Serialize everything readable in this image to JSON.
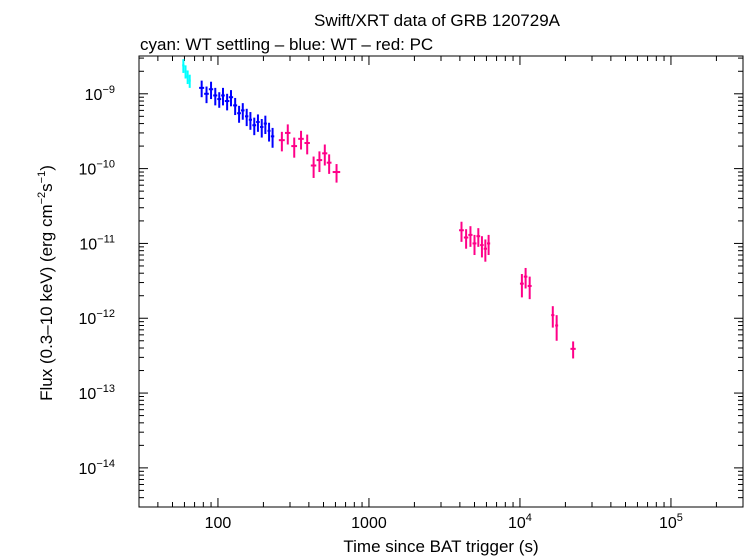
{
  "chart_data": {
    "type": "scatter",
    "title": "Swift/XRT data of GRB 120729A",
    "subtitle": "cyan: WT settling – blue: WT – red: PC",
    "xlabel": "Time since BAT trigger (s)",
    "ylabel_main": "Flux (0.3–10 keV) (erg cm",
    "ylabel_exp1": "−2",
    "ylabel_mid": "s",
    "ylabel_exp2": "−1",
    "ylabel_end": ")",
    "x_scale": "log",
    "y_scale": "log",
    "xlim": [
      30,
      300000
    ],
    "ylim": [
      3e-15,
      3.2e-09
    ],
    "x_ticks": [
      {
        "value": 100,
        "base": "100",
        "exp": ""
      },
      {
        "value": 1000,
        "base": "1000",
        "exp": ""
      },
      {
        "value": 10000,
        "base": "10",
        "exp": "4"
      },
      {
        "value": 100000,
        "base": "10",
        "exp": "5"
      }
    ],
    "y_ticks": [
      {
        "value": 1e-09,
        "base": "10",
        "exp": "−9"
      },
      {
        "value": 1e-10,
        "base": "10",
        "exp": "−10"
      },
      {
        "value": 1e-11,
        "base": "10",
        "exp": "−11"
      },
      {
        "value": 1e-12,
        "base": "10",
        "exp": "−12"
      },
      {
        "value": 1e-13,
        "base": "10",
        "exp": "−13"
      },
      {
        "value": 1e-14,
        "base": "10",
        "exp": "−14"
      }
    ],
    "grid": false,
    "series": [
      {
        "name": "WT settling",
        "color": "#00ffff",
        "points": [
          {
            "x": 59,
            "y": 2.4e-09,
            "xerr": 1,
            "yerr": 5e-10
          },
          {
            "x": 61,
            "y": 2e-09,
            "xerr": 1,
            "yerr": 4e-10
          },
          {
            "x": 63,
            "y": 1.7e-09,
            "xerr": 1,
            "yerr": 3.5e-10
          },
          {
            "x": 65,
            "y": 1.5e-09,
            "xerr": 1,
            "yerr": 3e-10
          }
        ]
      },
      {
        "name": "WT",
        "color": "#0000ff",
        "points": [
          {
            "x": 78,
            "y": 1.2e-09,
            "xerr": 3,
            "yerr": 3e-10
          },
          {
            "x": 84,
            "y": 1e-09,
            "xerr": 3,
            "yerr": 2.5e-10
          },
          {
            "x": 90,
            "y": 1.15e-09,
            "xerr": 3,
            "yerr": 3e-10
          },
          {
            "x": 96,
            "y": 9.5e-10,
            "xerr": 3,
            "yerr": 2.5e-10
          },
          {
            "x": 102,
            "y": 8.5e-10,
            "xerr": 3,
            "yerr": 2e-10
          },
          {
            "x": 108,
            "y": 9.5e-10,
            "xerr": 3,
            "yerr": 2.5e-10
          },
          {
            "x": 115,
            "y": 8e-10,
            "xerr": 4,
            "yerr": 2e-10
          },
          {
            "x": 122,
            "y": 9e-10,
            "xerr": 4,
            "yerr": 2.2e-10
          },
          {
            "x": 130,
            "y": 7e-10,
            "xerr": 4,
            "yerr": 1.8e-10
          },
          {
            "x": 138,
            "y": 5.5e-10,
            "xerr": 4,
            "yerr": 1.4e-10
          },
          {
            "x": 146,
            "y": 6e-10,
            "xerr": 4,
            "yerr": 1.5e-10
          },
          {
            "x": 155,
            "y": 5e-10,
            "xerr": 4,
            "yerr": 1.3e-10
          },
          {
            "x": 164,
            "y": 4.5e-10,
            "xerr": 4,
            "yerr": 1.2e-10
          },
          {
            "x": 174,
            "y": 3.8e-10,
            "xerr": 5,
            "yerr": 1e-10
          },
          {
            "x": 184,
            "y": 4.2e-10,
            "xerr": 5,
            "yerr": 1.1e-10
          },
          {
            "x": 195,
            "y": 3.6e-10,
            "xerr": 5,
            "yerr": 1e-10
          },
          {
            "x": 206,
            "y": 4e-10,
            "xerr": 5,
            "yerr": 1.1e-10
          },
          {
            "x": 218,
            "y": 3.2e-10,
            "xerr": 5,
            "yerr": 9e-11
          },
          {
            "x": 230,
            "y": 2.7e-10,
            "xerr": 6,
            "yerr": 8e-11
          }
        ]
      },
      {
        "name": "PC",
        "color": "#ff0088",
        "points": [
          {
            "x": 265,
            "y": 2.4e-10,
            "xerr": 12,
            "yerr": 7e-11
          },
          {
            "x": 290,
            "y": 3e-10,
            "xerr": 12,
            "yerr": 9e-11
          },
          {
            "x": 320,
            "y": 2e-10,
            "xerr": 14,
            "yerr": 6e-11
          },
          {
            "x": 355,
            "y": 2.5e-10,
            "xerr": 15,
            "yerr": 7e-11
          },
          {
            "x": 390,
            "y": 2.2e-10,
            "xerr": 16,
            "yerr": 6.5e-11
          },
          {
            "x": 430,
            "y": 1.1e-10,
            "xerr": 18,
            "yerr": 3.5e-11
          },
          {
            "x": 470,
            "y": 1.3e-10,
            "xerr": 20,
            "yerr": 4e-11
          },
          {
            "x": 510,
            "y": 1.6e-10,
            "xerr": 20,
            "yerr": 5e-11
          },
          {
            "x": 545,
            "y": 1.2e-10,
            "xerr": 20,
            "yerr": 3.5e-11
          },
          {
            "x": 610,
            "y": 9e-11,
            "xerr": 35,
            "yerr": 2.5e-11
          },
          {
            "x": 4100,
            "y": 1.5e-11,
            "xerr": 150,
            "yerr": 4.5e-12
          },
          {
            "x": 4400,
            "y": 1.2e-11,
            "xerr": 150,
            "yerr": 3.5e-12
          },
          {
            "x": 4700,
            "y": 1.3e-11,
            "xerr": 150,
            "yerr": 4e-12
          },
          {
            "x": 5000,
            "y": 1e-11,
            "xerr": 150,
            "yerr": 3e-12
          },
          {
            "x": 5300,
            "y": 1.25e-11,
            "xerr": 150,
            "yerr": 3.5e-12
          },
          {
            "x": 5600,
            "y": 9.5e-12,
            "xerr": 150,
            "yerr": 3e-12
          },
          {
            "x": 5900,
            "y": 8.5e-12,
            "xerr": 150,
            "yerr": 2.8e-12
          },
          {
            "x": 6200,
            "y": 1e-11,
            "xerr": 150,
            "yerr": 3e-12
          },
          {
            "x": 10300,
            "y": 2.9e-12,
            "xerr": 300,
            "yerr": 1e-12
          },
          {
            "x": 10900,
            "y": 3.6e-12,
            "xerr": 300,
            "yerr": 1.1e-12
          },
          {
            "x": 11600,
            "y": 2.7e-12,
            "xerr": 350,
            "yerr": 9e-13
          },
          {
            "x": 16500,
            "y": 1.1e-12,
            "xerr": 400,
            "yerr": 3.5e-13
          },
          {
            "x": 17500,
            "y": 8e-13,
            "xerr": 400,
            "yerr": 3e-13
          },
          {
            "x": 22500,
            "y": 3.9e-13,
            "xerr": 900,
            "yerr": 1e-13
          }
        ]
      }
    ]
  }
}
